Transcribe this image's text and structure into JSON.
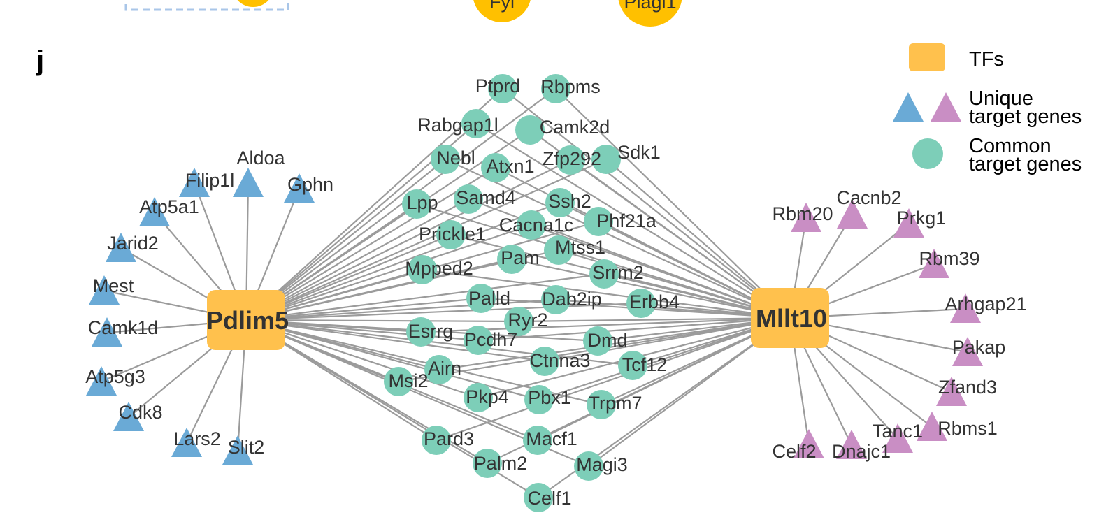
{
  "panel_letter": "j",
  "colors": {
    "tf": "#FFC14D",
    "common": "#7DCEB8",
    "unique_left": "#6AAAD6",
    "unique_right": "#C98EC4",
    "edge": "#9B9B9B",
    "top_tf": "#FFC000",
    "dashed_box": "#A9C6E8"
  },
  "top_partial": {
    "left_label": "Fyl",
    "right_label": "Plagl1"
  },
  "tfs": [
    {
      "id": "pdlim5",
      "label": "Pdlim5"
    },
    {
      "id": "mllt10",
      "label": "Mllt10"
    }
  ],
  "legend": {
    "tf_label": "TFs",
    "unique_label_1": "Unique",
    "unique_label_2": "target genes",
    "common_label_1": "Common",
    "common_label_2": "target genes"
  },
  "left_unique": [
    "Aldoa",
    "Filip1l",
    "Gphn",
    "Atp5a1",
    "Jarid2",
    "Mest",
    "Camk1d",
    "Atp5g3",
    "Cdk8",
    "Lars2",
    "Slit2"
  ],
  "right_unique": [
    "Rbm20",
    "Cacnb2",
    "Prkg1",
    "Rbm39",
    "Arhgap21",
    "Pakap",
    "Zfand3",
    "Rbms1",
    "Tanc1",
    "Dnajc1",
    "Celf2"
  ],
  "common": [
    "Ptprd",
    "Rbpms",
    "Rabgap1l",
    "Camk2d",
    "Nebl",
    "Atxn1",
    "Zfp292",
    "Sdk1",
    "Lpp",
    "Samd4",
    "Ssh2",
    "Phf21a",
    "Prickle1",
    "Cacna1c",
    "Mtss1",
    "Pam",
    "Mpped2",
    "Srrm2",
    "Palld",
    "Dab2ip",
    "Erbb4",
    "Ryr2",
    "Esrrg",
    "Pcdh7",
    "Dmd",
    "Ctnna3",
    "Airn",
    "Tcf12",
    "Msi2",
    "Pkp4",
    "Pbx1",
    "Trpm7",
    "Pard3",
    "Macf1",
    "Palm2",
    "Magi3",
    "Celf1"
  ]
}
